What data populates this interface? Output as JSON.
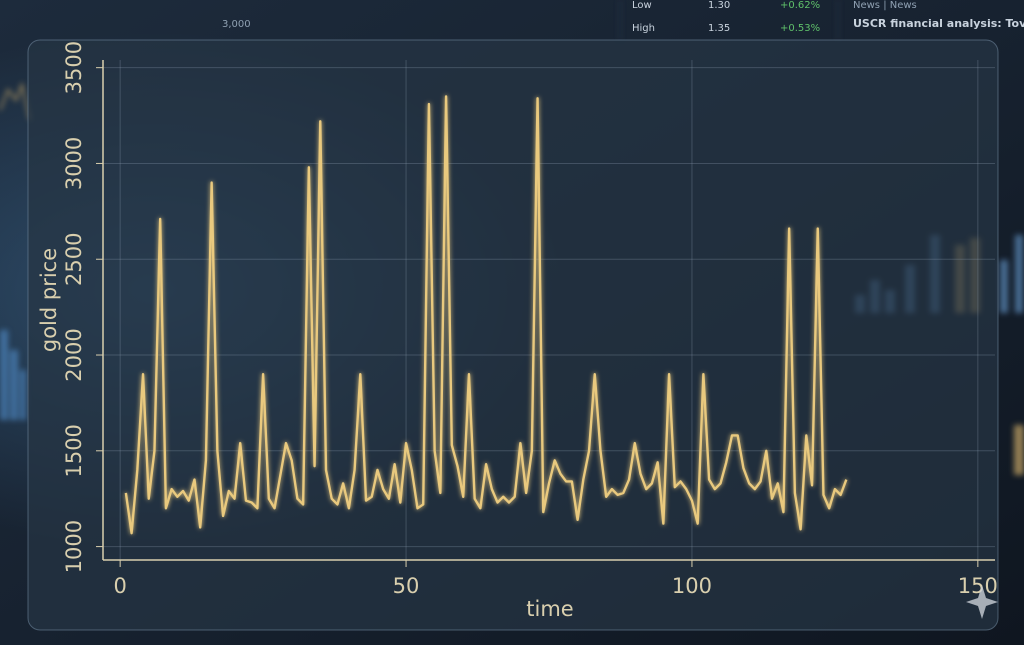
{
  "chart_data": {
    "type": "line",
    "xlabel": "time",
    "ylabel": "gold price",
    "x": [
      1,
      2,
      3,
      4,
      5,
      6,
      7,
      8,
      9,
      10,
      11,
      12,
      13,
      14,
      15,
      16,
      17,
      18,
      19,
      20,
      21,
      22,
      23,
      24,
      25,
      26,
      27,
      28,
      29,
      30,
      31,
      32,
      33,
      34,
      35,
      36,
      37,
      38,
      39,
      40,
      41,
      42,
      43,
      44,
      45,
      46,
      47,
      48,
      49,
      50,
      51,
      52,
      53,
      54,
      55,
      56,
      57,
      58,
      59,
      60,
      61,
      62,
      63,
      64,
      65,
      66,
      67,
      68,
      69,
      70,
      71,
      72,
      73,
      74,
      75,
      76,
      77,
      78,
      79,
      80,
      81,
      82,
      83,
      84,
      85,
      86,
      87,
      88,
      89,
      90,
      91,
      92,
      93,
      94,
      95,
      96,
      97,
      98,
      99,
      100,
      101,
      102,
      103,
      104,
      105,
      106,
      107,
      108,
      109,
      110,
      111,
      112,
      113,
      114,
      115,
      116,
      117,
      118,
      119,
      120,
      121,
      122,
      123,
      124,
      125,
      126,
      127
    ],
    "series": [
      {
        "name": "gold price",
        "color": "#e9c97e",
        "values": [
          1280,
          1070,
          1400,
          1900,
          1250,
          1500,
          2710,
          1200,
          1300,
          1260,
          1290,
          1240,
          1350,
          1100,
          1450,
          2900,
          1500,
          1160,
          1290,
          1250,
          1540,
          1240,
          1230,
          1200,
          1900,
          1250,
          1200,
          1370,
          1540,
          1450,
          1250,
          1220,
          2980,
          1420,
          3220,
          1400,
          1250,
          1220,
          1330,
          1200,
          1400,
          1900,
          1240,
          1260,
          1400,
          1300,
          1250,
          1430,
          1230,
          1540,
          1400,
          1200,
          1220,
          3310,
          1500,
          1280,
          3350,
          1530,
          1420,
          1260,
          1900,
          1250,
          1200,
          1430,
          1300,
          1230,
          1260,
          1230,
          1260,
          1540,
          1280,
          1500,
          3340,
          1180,
          1330,
          1450,
          1380,
          1340,
          1340,
          1140,
          1350,
          1500,
          1900,
          1500,
          1260,
          1300,
          1270,
          1280,
          1350,
          1540,
          1380,
          1300,
          1330,
          1440,
          1120,
          1900,
          1310,
          1340,
          1300,
          1240,
          1120,
          1900,
          1350,
          1300,
          1330,
          1440,
          1580,
          1580,
          1410,
          1330,
          1300,
          1340,
          1500,
          1250,
          1330,
          1180,
          2660,
          1280,
          1090,
          1580,
          1320,
          2660,
          1270,
          1200,
          1300,
          1270,
          1350
        ]
      }
    ],
    "xlim": [
      -3,
      153
    ],
    "ylim": [
      930,
      3540
    ],
    "xticks": [
      0,
      50,
      100,
      150
    ],
    "yticks": [
      1000,
      1500,
      2000,
      2500,
      3000,
      3500
    ],
    "grid": true
  },
  "background": {
    "texts": [
      "Low",
      "1.30",
      "+0.62%",
      "High",
      "1.35",
      "+0.53%",
      "News | News",
      "USCR financial analysis: Tove to",
      "3,000"
    ]
  }
}
